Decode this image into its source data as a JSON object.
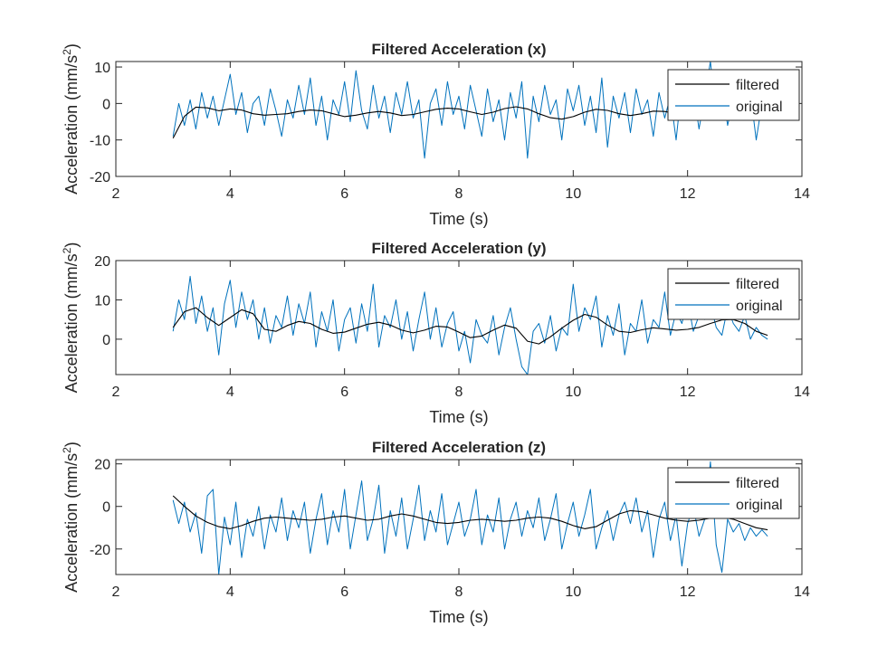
{
  "figure": {
    "colors": {
      "original": "#0072BD",
      "filtered": "#000000",
      "axis": "#262626",
      "background": "#ffffff"
    }
  },
  "chart_data": [
    {
      "type": "line",
      "title": "Filtered Acceleration (x)",
      "xlabel": "Time (s)",
      "ylabel": "Acceleration (mm/s",
      "ylabel_sup": "2",
      "ylabel_end": ")",
      "xlim": [
        2,
        14
      ],
      "ylim": [
        -20,
        11.5
      ],
      "xticks": [
        2,
        4,
        6,
        8,
        10,
        12,
        14
      ],
      "yticks": [
        -20,
        -10,
        0,
        10
      ],
      "legend": {
        "position": "top-right",
        "entries": [
          "filtered",
          "original"
        ]
      },
      "series": [
        {
          "name": "filtered",
          "color": "#000000",
          "x": [
            3.0,
            3.2,
            3.4,
            3.6,
            3.8,
            4.0,
            4.2,
            4.4,
            4.6,
            4.8,
            5.0,
            5.2,
            5.4,
            5.6,
            5.8,
            6.0,
            6.2,
            6.4,
            6.6,
            6.8,
            7.0,
            7.2,
            7.4,
            7.6,
            7.8,
            8.0,
            8.2,
            8.4,
            8.6,
            8.8,
            9.0,
            9.2,
            9.4,
            9.6,
            9.8,
            10.0,
            10.2,
            10.4,
            10.6,
            10.8,
            11.0,
            11.2,
            11.4,
            11.6,
            11.8,
            12.0,
            12.2,
            12.4,
            12.6,
            12.8,
            13.0,
            13.2,
            13.4
          ],
          "y": [
            -9.5,
            -3.5,
            -1.0,
            -1.2,
            -2.0,
            -1.5,
            -1.8,
            -2.8,
            -3.2,
            -3.0,
            -2.8,
            -2.2,
            -1.8,
            -2.0,
            -2.8,
            -3.6,
            -3.2,
            -2.6,
            -2.2,
            -2.6,
            -3.3,
            -3.0,
            -2.3,
            -1.6,
            -1.3,
            -1.5,
            -2.3,
            -3.0,
            -2.4,
            -1.4,
            -0.9,
            -1.5,
            -2.8,
            -3.9,
            -4.3,
            -3.6,
            -2.4,
            -1.6,
            -1.9,
            -2.8,
            -3.3,
            -2.8,
            -2.1,
            -2.2,
            -2.8,
            -3.2,
            -2.6,
            -1.8,
            -1.3,
            -1.1,
            -0.9,
            -0.6,
            -0.3
          ]
        },
        {
          "name": "original",
          "color": "#0072BD",
          "x": [
            3.0,
            3.1,
            3.2,
            3.3,
            3.4,
            3.5,
            3.6,
            3.7,
            3.8,
            3.9,
            4.0,
            4.1,
            4.2,
            4.3,
            4.4,
            4.5,
            4.6,
            4.7,
            4.8,
            4.9,
            5.0,
            5.1,
            5.2,
            5.3,
            5.4,
            5.5,
            5.6,
            5.7,
            5.8,
            5.9,
            6.0,
            6.1,
            6.2,
            6.3,
            6.4,
            6.5,
            6.6,
            6.7,
            6.8,
            6.9,
            7.0,
            7.1,
            7.2,
            7.3,
            7.4,
            7.5,
            7.6,
            7.7,
            7.8,
            7.9,
            8.0,
            8.1,
            8.2,
            8.3,
            8.4,
            8.5,
            8.6,
            8.7,
            8.8,
            8.9,
            9.0,
            9.1,
            9.2,
            9.3,
            9.4,
            9.5,
            9.6,
            9.7,
            9.8,
            9.9,
            10.0,
            10.1,
            10.2,
            10.3,
            10.4,
            10.5,
            10.6,
            10.7,
            10.8,
            10.9,
            11.0,
            11.1,
            11.2,
            11.3,
            11.4,
            11.5,
            11.6,
            11.7,
            11.8,
            11.9,
            12.0,
            12.1,
            12.2,
            12.3,
            12.4,
            12.5,
            12.6,
            12.7,
            12.8,
            12.9,
            13.0,
            13.1,
            13.2,
            13.3,
            13.4
          ],
          "y": [
            -9.0,
            0.0,
            -6.0,
            1.0,
            -7.0,
            3.0,
            -4.0,
            2.0,
            -6.0,
            1.0,
            8.0,
            -3.0,
            3.0,
            -8.0,
            0.0,
            2.0,
            -6.0,
            4.0,
            -2.0,
            -9.0,
            1.0,
            -4.0,
            5.0,
            -3.0,
            7.0,
            -6.0,
            2.0,
            -10.0,
            1.0,
            -3.0,
            6.0,
            -5.0,
            9.0,
            -2.0,
            -7.0,
            5.0,
            -4.0,
            2.0,
            -8.0,
            3.0,
            -3.0,
            6.0,
            -4.0,
            1.0,
            -15.0,
            0.0,
            4.0,
            -6.0,
            6.0,
            -3.0,
            2.0,
            -7.0,
            5.0,
            -2.0,
            -9.0,
            4.0,
            -5.0,
            1.0,
            -10.0,
            3.0,
            -4.0,
            6.0,
            -15.0,
            2.0,
            -5.0,
            5.0,
            -3.0,
            1.0,
            -10.0,
            4.0,
            -2.0,
            5.0,
            -6.0,
            2.0,
            -8.0,
            7.0,
            -12.0,
            2.0,
            -4.0,
            3.0,
            -8.0,
            4.0,
            -3.0,
            1.0,
            -9.0,
            3.0,
            -4.0,
            2.0,
            -10.0,
            5.0,
            -3.0,
            4.0,
            -7.0,
            2.0,
            11.5,
            -4.0,
            5.0,
            -6.0,
            1.0,
            -3.0,
            -2.0,
            3.0,
            -10.0,
            0.0,
            -4.0
          ]
        }
      ]
    },
    {
      "type": "line",
      "title": "Filtered Acceleration (y)",
      "xlabel": "Time (s)",
      "ylabel": "Acceleration (mm/s",
      "ylabel_sup": "2",
      "ylabel_end": ")",
      "xlim": [
        2,
        14
      ],
      "ylim": [
        -9,
        20
      ],
      "xticks": [
        2,
        4,
        6,
        8,
        10,
        12,
        14
      ],
      "yticks": [
        0,
        10,
        20
      ],
      "legend": {
        "position": "top-right",
        "entries": [
          "filtered",
          "original"
        ]
      },
      "series": [
        {
          "name": "filtered",
          "color": "#000000",
          "x": [
            3.0,
            3.2,
            3.4,
            3.6,
            3.8,
            4.0,
            4.2,
            4.4,
            4.6,
            4.8,
            5.0,
            5.2,
            5.4,
            5.6,
            5.8,
            6.0,
            6.2,
            6.4,
            6.6,
            6.8,
            7.0,
            7.2,
            7.4,
            7.6,
            7.8,
            8.0,
            8.2,
            8.4,
            8.6,
            8.8,
            9.0,
            9.2,
            9.4,
            9.6,
            9.8,
            10.0,
            10.2,
            10.4,
            10.6,
            10.8,
            11.0,
            11.2,
            11.4,
            11.6,
            11.8,
            12.0,
            12.2,
            12.4,
            12.6,
            12.8,
            13.0,
            13.2,
            13.4
          ],
          "y": [
            3.0,
            7.0,
            8.0,
            5.5,
            3.5,
            5.5,
            7.5,
            6.5,
            2.5,
            2.0,
            3.5,
            4.5,
            4.0,
            2.5,
            1.5,
            1.8,
            2.8,
            3.8,
            4.3,
            3.6,
            2.3,
            1.6,
            2.3,
            3.3,
            3.1,
            1.8,
            0.4,
            0.8,
            2.3,
            3.6,
            2.8,
            -0.5,
            -1.2,
            0.6,
            2.8,
            4.8,
            6.3,
            5.6,
            3.6,
            2.0,
            1.7,
            2.4,
            2.9,
            2.6,
            2.3,
            2.5,
            3.0,
            4.0,
            4.9,
            5.0,
            4.0,
            2.0,
            1.0
          ]
        },
        {
          "name": "original",
          "color": "#0072BD",
          "x": [
            3.0,
            3.1,
            3.2,
            3.3,
            3.4,
            3.5,
            3.6,
            3.7,
            3.8,
            3.9,
            4.0,
            4.1,
            4.2,
            4.3,
            4.4,
            4.5,
            4.6,
            4.7,
            4.8,
            4.9,
            5.0,
            5.1,
            5.2,
            5.3,
            5.4,
            5.5,
            5.6,
            5.7,
            5.8,
            5.9,
            6.0,
            6.1,
            6.2,
            6.3,
            6.4,
            6.5,
            6.6,
            6.7,
            6.8,
            6.9,
            7.0,
            7.1,
            7.2,
            7.3,
            7.4,
            7.5,
            7.6,
            7.7,
            7.8,
            7.9,
            8.0,
            8.1,
            8.2,
            8.3,
            8.4,
            8.5,
            8.6,
            8.7,
            8.8,
            8.9,
            9.0,
            9.1,
            9.2,
            9.3,
            9.4,
            9.5,
            9.6,
            9.7,
            9.8,
            9.9,
            10.0,
            10.1,
            10.2,
            10.3,
            10.4,
            10.5,
            10.6,
            10.7,
            10.8,
            10.9,
            11.0,
            11.1,
            11.2,
            11.3,
            11.4,
            11.5,
            11.6,
            11.7,
            11.8,
            11.9,
            12.0,
            12.1,
            12.2,
            12.3,
            12.4,
            12.5,
            12.6,
            12.7,
            12.8,
            12.9,
            13.0,
            13.1,
            13.2,
            13.3,
            13.4
          ],
          "y": [
            2.0,
            10.0,
            5.0,
            16.0,
            4.0,
            11.0,
            2.0,
            8.0,
            -4.0,
            9.0,
            15.0,
            3.0,
            12.0,
            5.0,
            10.0,
            0.0,
            8.0,
            -1.0,
            6.0,
            3.0,
            11.0,
            1.0,
            9.0,
            4.0,
            12.0,
            -2.0,
            7.0,
            2.0,
            10.0,
            -3.0,
            5.0,
            8.0,
            -1.0,
            9.0,
            2.0,
            14.0,
            -2.0,
            6.0,
            3.0,
            10.0,
            0.0,
            7.0,
            -3.0,
            5.0,
            12.0,
            0.0,
            8.0,
            -2.0,
            4.0,
            7.0,
            -3.0,
            2.0,
            -6.0,
            5.0,
            1.0,
            -1.0,
            6.0,
            -4.0,
            3.0,
            8.0,
            0.0,
            -7.0,
            -9.0,
            2.0,
            4.0,
            -1.0,
            6.0,
            -3.0,
            3.0,
            1.0,
            14.0,
            2.0,
            8.0,
            5.0,
            11.0,
            -2.0,
            6.0,
            1.0,
            9.0,
            -4.0,
            4.0,
            2.0,
            10.0,
            -1.0,
            5.0,
            3.0,
            12.0,
            1.0,
            7.0,
            4.0,
            10.0,
            2.0,
            6.0,
            5.0,
            9.0,
            3.0,
            1.0,
            8.0,
            4.0,
            2.0,
            6.0,
            0.0,
            3.0,
            1.0,
            0.0
          ]
        }
      ]
    },
    {
      "type": "line",
      "title": "Filtered Acceleration (z)",
      "xlabel": "Time (s)",
      "ylabel": "Acceleration (mm/s",
      "ylabel_sup": "2",
      "ylabel_end": ")",
      "xlim": [
        2,
        14
      ],
      "ylim": [
        -32,
        22
      ],
      "xticks": [
        2,
        4,
        6,
        8,
        10,
        12,
        14
      ],
      "yticks": [
        -20,
        0,
        20
      ],
      "legend": {
        "position": "top-right",
        "entries": [
          "filtered",
          "original"
        ]
      },
      "series": [
        {
          "name": "filtered",
          "color": "#000000",
          "x": [
            3.0,
            3.2,
            3.4,
            3.6,
            3.8,
            4.0,
            4.2,
            4.4,
            4.6,
            4.8,
            5.0,
            5.2,
            5.4,
            5.6,
            5.8,
            6.0,
            6.2,
            6.4,
            6.6,
            6.8,
            7.0,
            7.2,
            7.4,
            7.6,
            7.8,
            8.0,
            8.2,
            8.4,
            8.6,
            8.8,
            9.0,
            9.2,
            9.4,
            9.6,
            9.8,
            10.0,
            10.2,
            10.4,
            10.6,
            10.8,
            11.0,
            11.2,
            11.4,
            11.6,
            11.8,
            12.0,
            12.2,
            12.4,
            12.6,
            12.8,
            13.0,
            13.2,
            13.4
          ],
          "y": [
            5.0,
            0.0,
            -4.5,
            -7.5,
            -9.5,
            -10.5,
            -9.0,
            -7.0,
            -5.5,
            -5.0,
            -5.5,
            -6.0,
            -6.5,
            -6.0,
            -5.0,
            -4.5,
            -5.5,
            -6.5,
            -6.0,
            -4.5,
            -3.5,
            -4.5,
            -6.0,
            -7.5,
            -8.0,
            -7.5,
            -6.5,
            -6.0,
            -6.5,
            -7.0,
            -6.5,
            -5.5,
            -5.0,
            -5.5,
            -7.0,
            -9.0,
            -10.5,
            -9.5,
            -6.5,
            -3.5,
            -2.0,
            -2.5,
            -4.0,
            -5.5,
            -6.5,
            -7.0,
            -6.5,
            -5.5,
            -5.0,
            -6.0,
            -8.0,
            -10.0,
            -11.0
          ]
        },
        {
          "name": "original",
          "color": "#0072BD",
          "x": [
            3.0,
            3.1,
            3.2,
            3.3,
            3.4,
            3.5,
            3.6,
            3.7,
            3.8,
            3.9,
            4.0,
            4.1,
            4.2,
            4.3,
            4.4,
            4.5,
            4.6,
            4.7,
            4.8,
            4.9,
            5.0,
            5.1,
            5.2,
            5.3,
            5.4,
            5.5,
            5.6,
            5.7,
            5.8,
            5.9,
            6.0,
            6.1,
            6.2,
            6.3,
            6.4,
            6.5,
            6.6,
            6.7,
            6.8,
            6.9,
            7.0,
            7.1,
            7.2,
            7.3,
            7.4,
            7.5,
            7.6,
            7.7,
            7.8,
            7.9,
            8.0,
            8.1,
            8.2,
            8.3,
            8.4,
            8.5,
            8.6,
            8.7,
            8.8,
            8.9,
            9.0,
            9.1,
            9.2,
            9.3,
            9.4,
            9.5,
            9.6,
            9.7,
            9.8,
            9.9,
            10.0,
            10.1,
            10.2,
            10.3,
            10.4,
            10.5,
            10.6,
            10.7,
            10.8,
            10.9,
            11.0,
            11.1,
            11.2,
            11.3,
            11.4,
            11.5,
            11.6,
            11.7,
            11.8,
            11.9,
            12.0,
            12.1,
            12.2,
            12.3,
            12.4,
            12.5,
            12.6,
            12.7,
            12.8,
            12.9,
            13.0,
            13.1,
            13.2,
            13.3,
            13.4
          ],
          "y": [
            3.0,
            -8.0,
            2.0,
            -12.0,
            -3.0,
            -22.0,
            5.0,
            8.0,
            -32.0,
            -5.0,
            -18.0,
            2.0,
            -24.0,
            -6.0,
            -14.0,
            0.0,
            -20.0,
            -4.0,
            -12.0,
            4.0,
            -16.0,
            -2.0,
            -10.0,
            2.0,
            -22.0,
            -6.0,
            6.0,
            -18.0,
            -2.0,
            -12.0,
            8.0,
            -20.0,
            -4.0,
            12.0,
            -16.0,
            -6.0,
            10.0,
            -22.0,
            -2.0,
            -14.0,
            4.0,
            -20.0,
            -6.0,
            10.0,
            -16.0,
            -2.0,
            -12.0,
            6.0,
            -18.0,
            -8.0,
            2.0,
            -14.0,
            -6.0,
            8.0,
            -18.0,
            -4.0,
            -12.0,
            4.0,
            -20.0,
            -6.0,
            2.0,
            -14.0,
            -2.0,
            -10.0,
            4.0,
            -16.0,
            -6.0,
            6.0,
            -20.0,
            -8.0,
            2.0,
            -14.0,
            -4.0,
            8.0,
            -20.0,
            -10.0,
            -2.0,
            -16.0,
            -4.0,
            2.0,
            -8.0,
            4.0,
            -12.0,
            -2.0,
            -24.0,
            -6.0,
            2.0,
            -16.0,
            -4.0,
            -28.0,
            -8.0,
            0.0,
            -14.0,
            -6.0,
            21.0,
            -18.0,
            -31.0,
            -6.0,
            -12.0,
            -8.0,
            -16.0,
            -10.0,
            -14.0,
            -11.0,
            -14.0
          ]
        }
      ]
    }
  ]
}
